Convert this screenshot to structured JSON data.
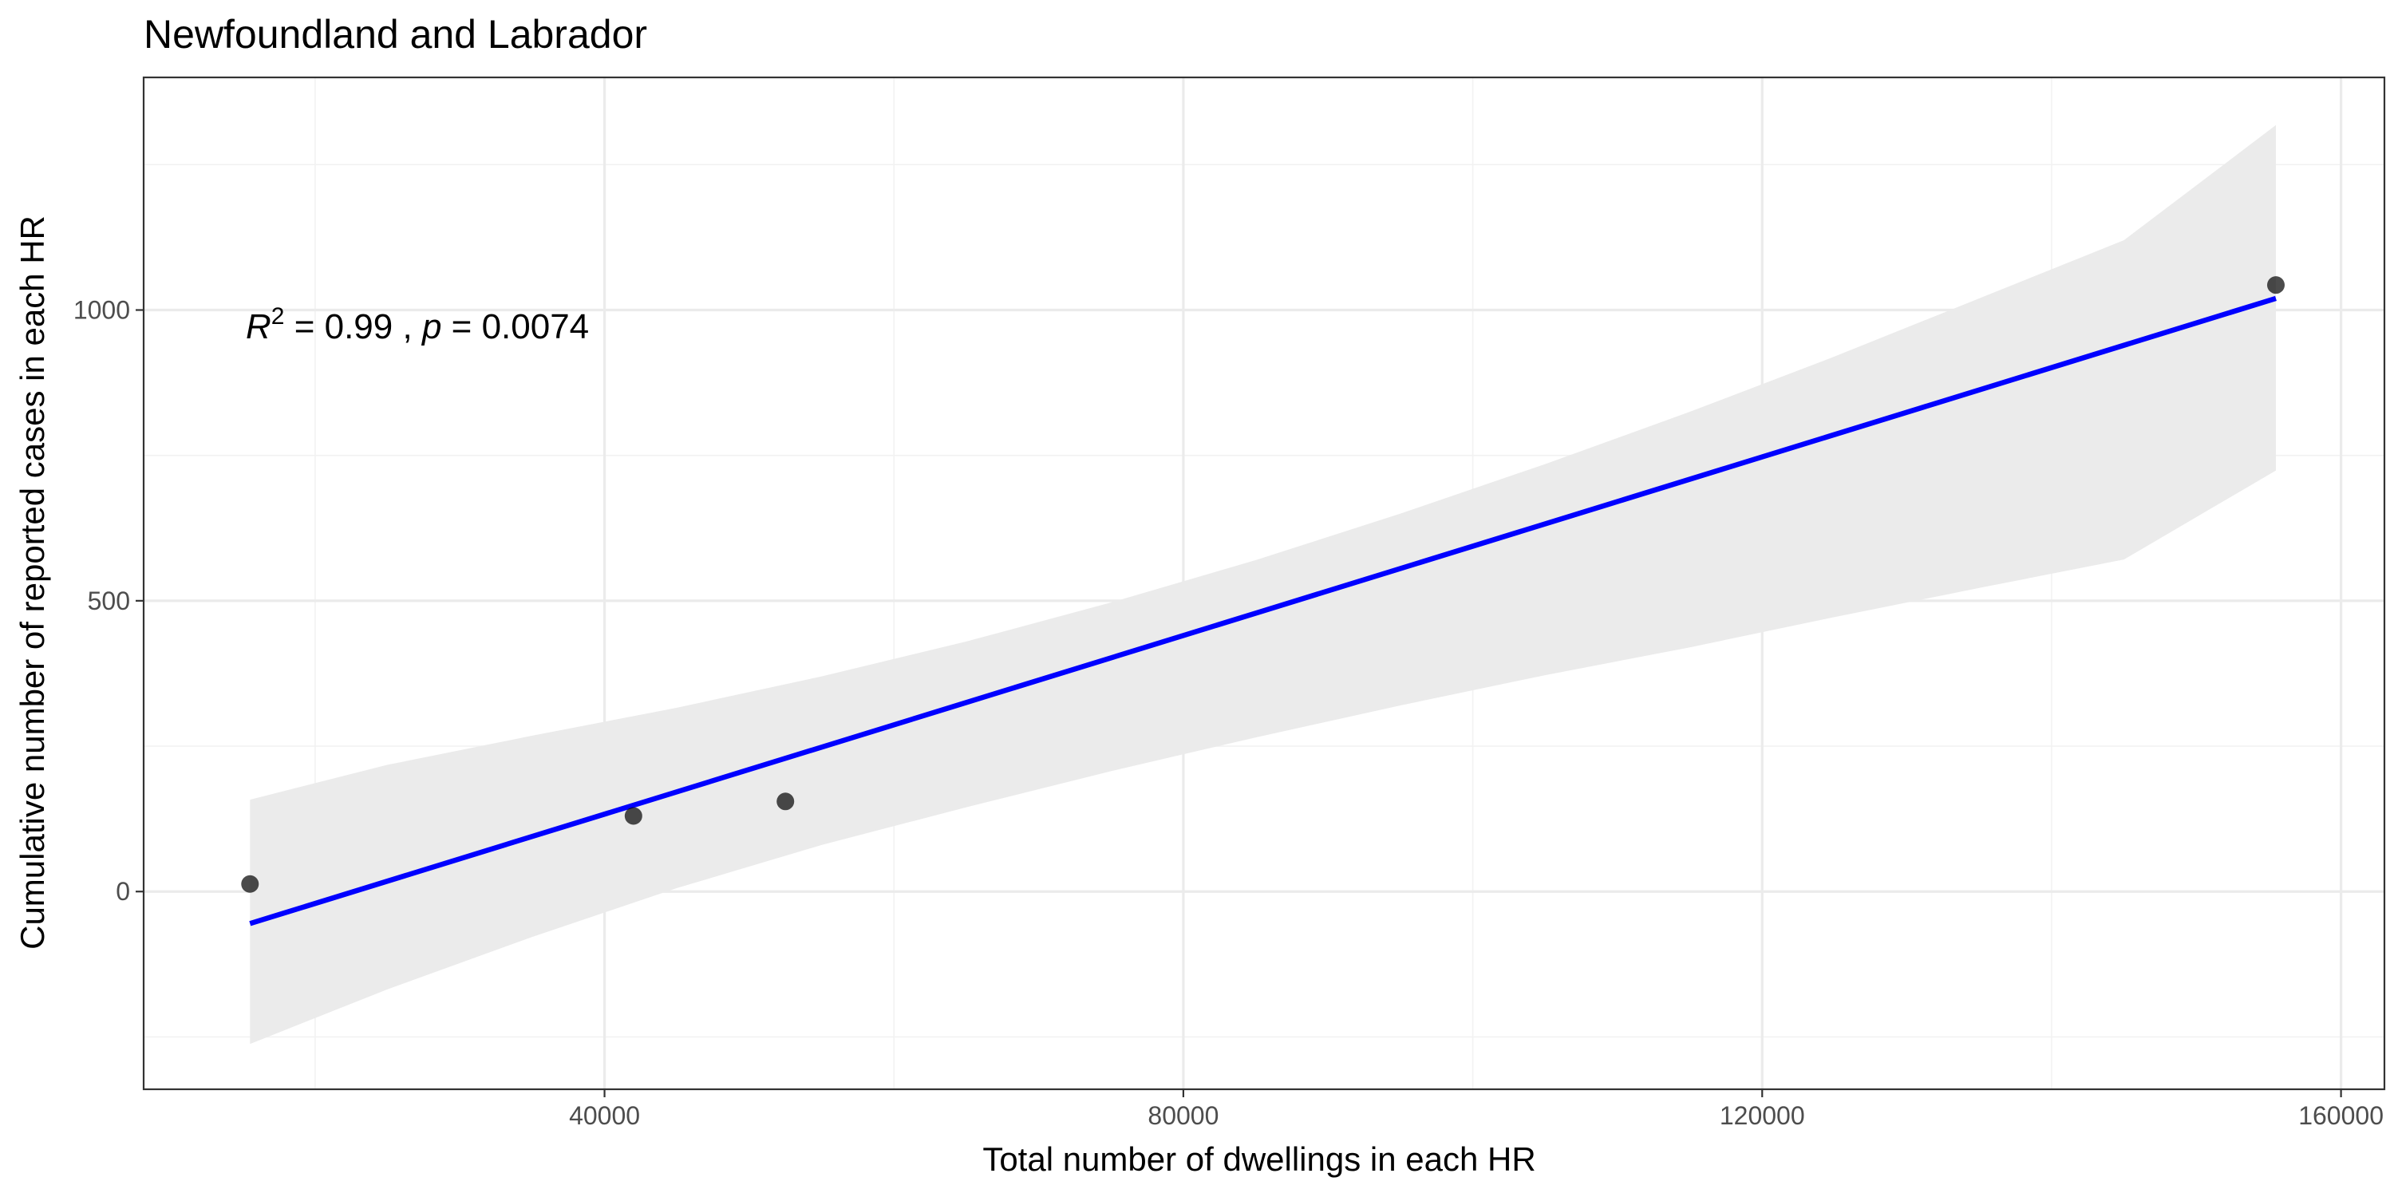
{
  "chart_data": {
    "type": "scatter",
    "title": "Newfoundland and Labrador",
    "xlabel": "Total number of dwellings in each HR",
    "ylabel": "Cumulative number of reported cases in each HR",
    "xlim": [
      8150,
      163000
    ],
    "ylim": [
      -340,
      1400
    ],
    "x_ticks": [
      40000,
      80000,
      120000,
      160000
    ],
    "y_ticks": [
      0,
      500,
      1000
    ],
    "grid": true,
    "points": [
      {
        "x": 15500,
        "y": 13
      },
      {
        "x": 42000,
        "y": 130
      },
      {
        "x": 52500,
        "y": 155
      },
      {
        "x": 155500,
        "y": 1043
      }
    ],
    "fit_line": {
      "color": "#0000ff",
      "x": [
        15500,
        155500
      ],
      "y": [
        -55,
        1020
      ]
    },
    "confidence_band": {
      "x": [
        15500,
        25000,
        35000,
        45000,
        55000,
        65000,
        75000,
        85000,
        95000,
        105000,
        115000,
        125000,
        135000,
        145000,
        155500
      ],
      "lower": [
        -262,
        -168,
        -78,
        6,
        80,
        145,
        207,
        265,
        320,
        372,
        420,
        472,
        522,
        571,
        724
      ],
      "upper": [
        158,
        218,
        268,
        316,
        370,
        430,
        497,
        570,
        650,
        735,
        825,
        920,
        1020,
        1120,
        1318
      ]
    },
    "annotation": {
      "r_symbol": "R",
      "r_exp": "2",
      "r_value": " = 0.99 , ",
      "p_symbol": "p",
      "p_value": " = 0.0074"
    }
  }
}
